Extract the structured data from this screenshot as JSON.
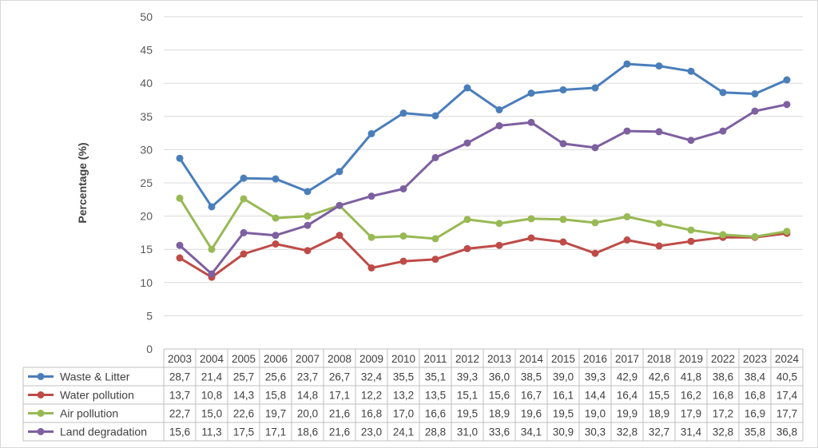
{
  "chart_data": {
    "type": "line",
    "title": "",
    "xlabel": "",
    "ylabel": "Percentage (%)",
    "ylim": [
      0,
      50
    ],
    "yticks": [
      "0",
      "5",
      "10",
      "15",
      "20",
      "25",
      "30",
      "35",
      "40",
      "45",
      "50"
    ],
    "grid": true,
    "legend": "data-table",
    "categories": [
      "2003",
      "2004",
      "2005",
      "2006",
      "2007",
      "2008",
      "2009",
      "2010",
      "2011",
      "2012",
      "2013",
      "2014",
      "2015",
      "2016",
      "2017",
      "2018",
      "2019",
      "2022",
      "2023",
      "2024"
    ],
    "series": [
      {
        "name": "Waste & Litter",
        "color": "#4a7ebb",
        "values": [
          28.7,
          21.4,
          25.7,
          25.6,
          23.7,
          26.7,
          32.4,
          35.5,
          35.1,
          39.3,
          36.0,
          38.5,
          39.0,
          39.3,
          42.9,
          42.6,
          41.8,
          38.6,
          38.4,
          40.5
        ],
        "labels": [
          "28,7",
          "21,4",
          "25,7",
          "25,6",
          "23,7",
          "26,7",
          "32,4",
          "35,5",
          "35,1",
          "39,3",
          "36,0",
          "38,5",
          "39,0",
          "39,3",
          "42,9",
          "42,6",
          "41,8",
          "38,6",
          "38,4",
          "40,5"
        ]
      },
      {
        "name": "Water pollution",
        "color": "#be4b48",
        "values": [
          13.7,
          10.8,
          14.3,
          15.8,
          14.8,
          17.1,
          12.2,
          13.2,
          13.5,
          15.1,
          15.6,
          16.7,
          16.1,
          14.4,
          16.4,
          15.5,
          16.2,
          16.8,
          16.8,
          17.4
        ],
        "labels": [
          "13,7",
          "10,8",
          "14,3",
          "15,8",
          "14,8",
          "17,1",
          "12,2",
          "13,2",
          "13,5",
          "15,1",
          "15,6",
          "16,7",
          "16,1",
          "14,4",
          "16,4",
          "15,5",
          "16,2",
          "16,8",
          "16,8",
          "17,4"
        ]
      },
      {
        "name": "Air pollution",
        "color": "#98b954",
        "values": [
          22.7,
          15.0,
          22.6,
          19.7,
          20.0,
          21.6,
          16.8,
          17.0,
          16.6,
          19.5,
          18.9,
          19.6,
          19.5,
          19.0,
          19.9,
          18.9,
          17.9,
          17.2,
          16.9,
          17.7
        ],
        "labels": [
          "22,7",
          "15,0",
          "22,6",
          "19,7",
          "20,0",
          "21,6",
          "16,8",
          "17,0",
          "16,6",
          "19,5",
          "18,9",
          "19,6",
          "19,5",
          "19,0",
          "19,9",
          "18,9",
          "17,9",
          "17,2",
          "16,9",
          "17,7"
        ]
      },
      {
        "name": "Land degradation",
        "color": "#7d60a0",
        "values": [
          15.6,
          11.3,
          17.5,
          17.1,
          18.6,
          21.6,
          23.0,
          24.1,
          28.8,
          31.0,
          33.6,
          34.1,
          30.9,
          30.3,
          32.8,
          32.7,
          31.4,
          32.8,
          35.8,
          36.8
        ],
        "labels": [
          "15,6",
          "11,3",
          "17,5",
          "17,1",
          "18,6",
          "21,6",
          "23,0",
          "24,1",
          "28,8",
          "31,0",
          "33,6",
          "34,1",
          "30,9",
          "30,3",
          "32,8",
          "32,7",
          "31,4",
          "32,8",
          "35,8",
          "36,8"
        ]
      }
    ]
  }
}
